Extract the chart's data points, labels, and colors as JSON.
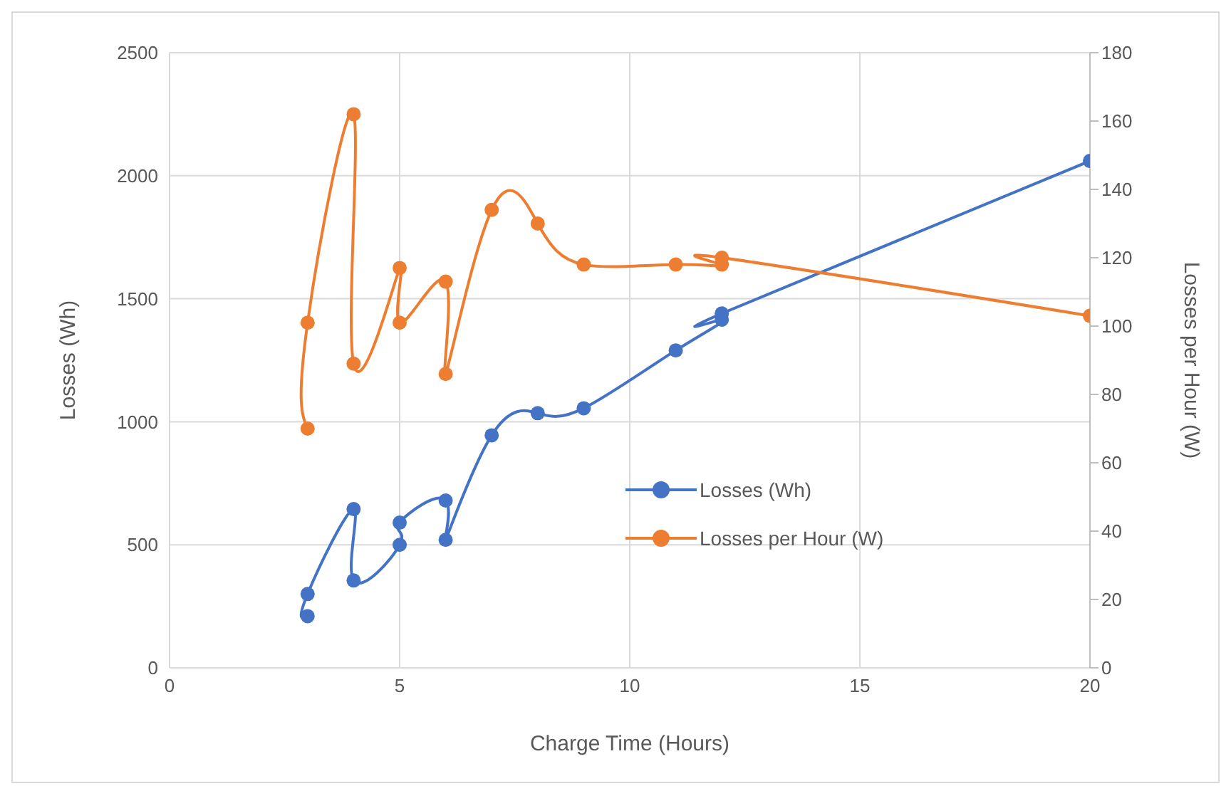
{
  "chart_data": {
    "type": "line",
    "xlabel": "Charge Time (Hours)",
    "ylabel": "Losses (Wh)",
    "y2label": "Losses per Hour (W)",
    "xlim": [
      0,
      20
    ],
    "xticks": [
      0,
      5,
      10,
      15,
      20
    ],
    "ylim": [
      0,
      2500
    ],
    "yticks": [
      0,
      500,
      1000,
      1500,
      2000,
      2500
    ],
    "y2lim": [
      0,
      180
    ],
    "y2ticks": [
      0,
      20,
      40,
      60,
      80,
      100,
      120,
      140,
      160,
      180
    ],
    "grid": true,
    "legend": "bottom right",
    "marker": "circle",
    "series": [
      {
        "name": "Losses (Wh)",
        "color": "#4472c4",
        "x": [
          3,
          3,
          4,
          4,
          5,
          5,
          6,
          6,
          7,
          8,
          9,
          11,
          12,
          12,
          20
        ],
        "values": [
          210,
          300,
          645,
          355,
          500,
          590,
          680,
          520,
          945,
          1035,
          1055,
          1290,
          1415,
          1440,
          2060
        ]
      },
      {
        "name": "Losses per Hour (W)",
        "color": "#ed7d31",
        "axis": "y2",
        "x": [
          3,
          3,
          4,
          4,
          5,
          5,
          6,
          6,
          7,
          8,
          9,
          11,
          12,
          12,
          20
        ],
        "values": [
          70,
          101,
          162,
          89,
          117,
          101,
          113,
          86,
          134,
          130,
          118,
          118,
          118,
          120,
          103
        ]
      }
    ]
  }
}
